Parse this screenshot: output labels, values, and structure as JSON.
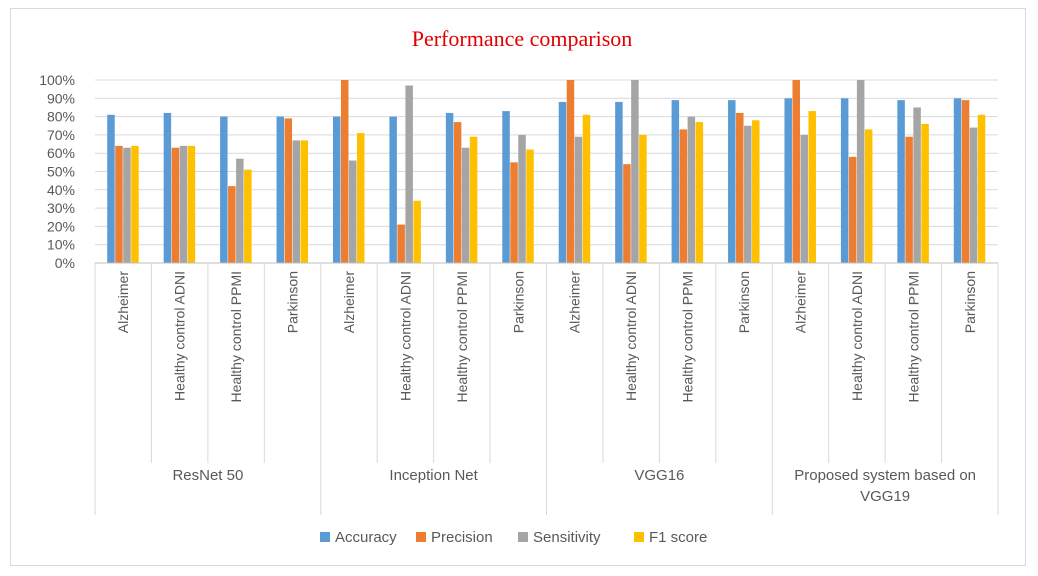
{
  "chart_data": {
    "type": "bar",
    "title": "Performance  comparison",
    "xlabel": "",
    "ylabel": "",
    "ylim": [
      0,
      100
    ],
    "yticks": [
      "0%",
      "10%",
      "20%",
      "30%",
      "40%",
      "50%",
      "60%",
      "70%",
      "80%",
      "90%",
      "100%"
    ],
    "groups": [
      {
        "label": "ResNet 50",
        "categories": [
          "Alzheimer",
          "Healthy control ADNI",
          "Healthy control PPMI",
          "Parkinson"
        ]
      },
      {
        "label": "Inception Net",
        "categories": [
          "Alzheimer",
          "Healthy control ADNI",
          "Healthy control PPMI",
          "Parkinson"
        ]
      },
      {
        "label": "VGG16",
        "categories": [
          "Alzheimer",
          "Healthy control ADNI",
          "Healthy control PPMI",
          "Parkinson"
        ]
      },
      {
        "label": "Proposed system based on VGG19",
        "categories": [
          "Alzheimer",
          "Healthy control ADNI",
          "Healthy control PPMI",
          "Parkinson"
        ]
      }
    ],
    "series": [
      {
        "name": "Accuracy",
        "color": "#5b9bd5",
        "values": [
          81,
          82,
          80,
          80,
          80,
          80,
          82,
          83,
          88,
          88,
          89,
          89,
          90,
          90,
          89,
          90
        ]
      },
      {
        "name": "Precision",
        "color": "#ed7d31",
        "values": [
          64,
          63,
          42,
          79,
          100,
          21,
          77,
          55,
          100,
          54,
          73,
          82,
          100,
          58,
          69,
          89
        ]
      },
      {
        "name": "Sensitivity",
        "color": "#a5a5a5",
        "values": [
          63,
          64,
          57,
          67,
          56,
          97,
          63,
          70,
          69,
          100,
          80,
          75,
          70,
          100,
          85,
          74
        ]
      },
      {
        "name": "F1 score",
        "color": "#ffc000",
        "values": [
          64,
          64,
          51,
          67,
          71,
          34,
          69,
          62,
          81,
          70,
          77,
          78,
          83,
          73,
          76,
          81
        ]
      }
    ],
    "grid": true,
    "legend_position": "bottom"
  }
}
